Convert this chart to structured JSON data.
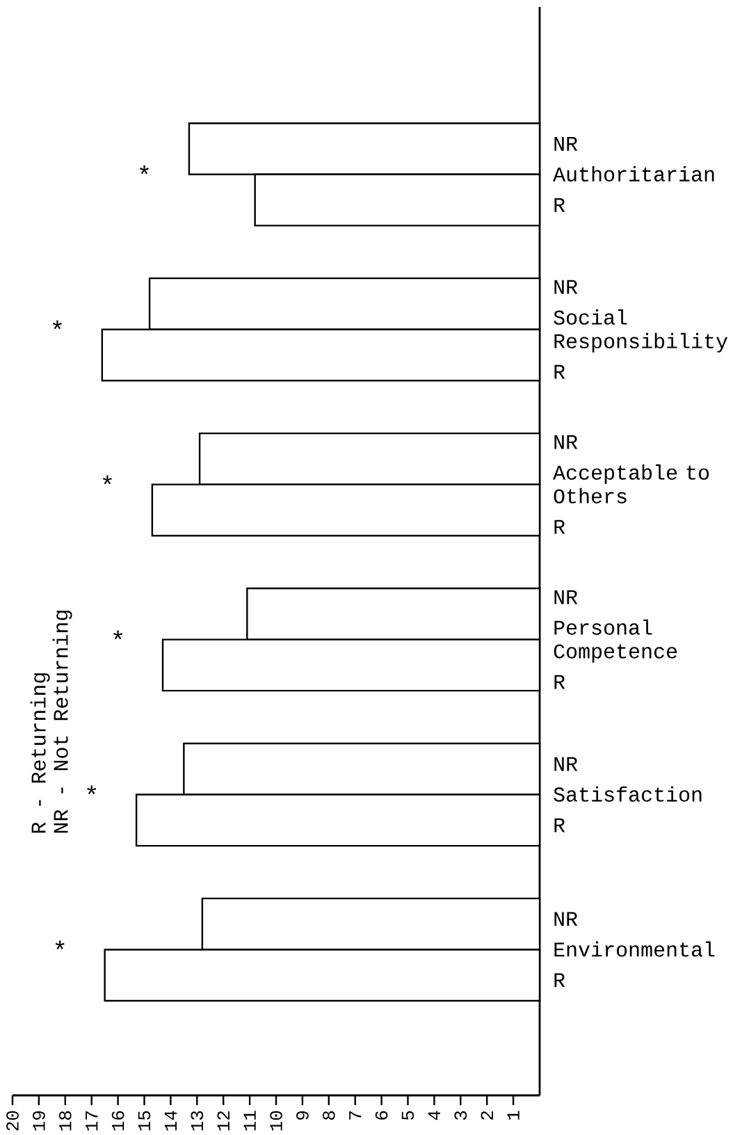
{
  "chart_data": {
    "type": "bar",
    "orientation": "horizontal",
    "categories": [
      "Authoritarian",
      "Social Responsibility",
      "Acceptable to Others",
      "Personal Competence",
      "Satisfaction",
      "Environmental"
    ],
    "series": [
      {
        "name": "NR",
        "color": "#ffffff",
        "values": [
          13.3,
          14.8,
          12.9,
          11.1,
          13.5,
          12.8
        ]
      },
      {
        "name": "R",
        "color": "#ffffff",
        "values": [
          10.8,
          16.6,
          14.7,
          14.3,
          15.3,
          16.5
        ]
      }
    ],
    "xlim": [
      20,
      0
    ],
    "xticks": [
      20,
      19,
      18,
      17,
      16,
      15,
      14,
      13,
      12,
      11,
      10,
      9,
      8,
      7,
      6,
      5,
      4,
      3,
      2,
      1
    ],
    "annotations": [
      "*",
      "*",
      "*",
      "*",
      "*",
      "*",
      "R - Returning",
      "NR - Not Returning"
    ]
  }
}
